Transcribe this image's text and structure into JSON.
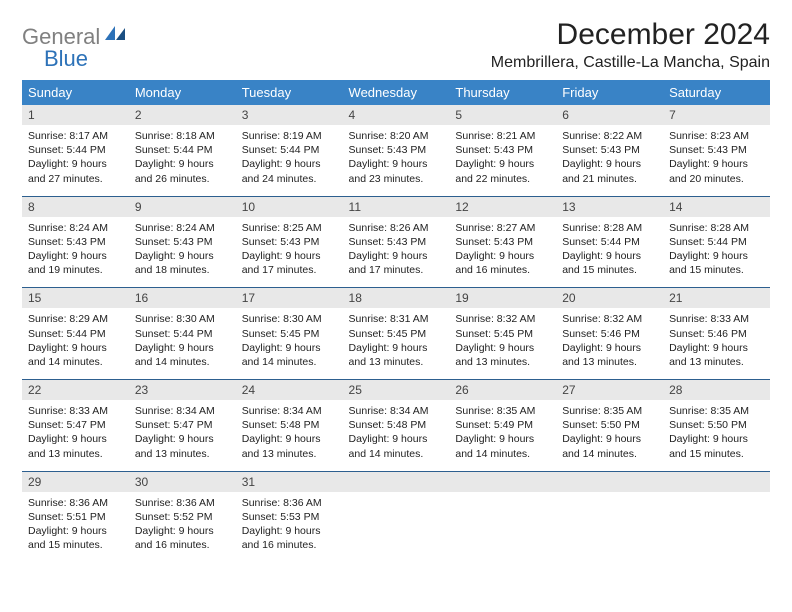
{
  "logo": {
    "gray": "General",
    "blue": "Blue"
  },
  "title": "December 2024",
  "location": "Membrillera, Castille-La Mancha, Spain",
  "colors": {
    "header_bg": "#3983c6",
    "header_text": "#ffffff",
    "daynum_bg": "#e8e8e8",
    "border": "#2d5f8f",
    "logo_gray": "#808080",
    "logo_blue": "#2d72b8"
  },
  "day_headers": [
    "Sunday",
    "Monday",
    "Tuesday",
    "Wednesday",
    "Thursday",
    "Friday",
    "Saturday"
  ],
  "weeks": [
    [
      {
        "n": "1",
        "sr": "Sunrise: 8:17 AM",
        "ss": "Sunset: 5:44 PM",
        "d1": "Daylight: 9 hours",
        "d2": "and 27 minutes."
      },
      {
        "n": "2",
        "sr": "Sunrise: 8:18 AM",
        "ss": "Sunset: 5:44 PM",
        "d1": "Daylight: 9 hours",
        "d2": "and 26 minutes."
      },
      {
        "n": "3",
        "sr": "Sunrise: 8:19 AM",
        "ss": "Sunset: 5:44 PM",
        "d1": "Daylight: 9 hours",
        "d2": "and 24 minutes."
      },
      {
        "n": "4",
        "sr": "Sunrise: 8:20 AM",
        "ss": "Sunset: 5:43 PM",
        "d1": "Daylight: 9 hours",
        "d2": "and 23 minutes."
      },
      {
        "n": "5",
        "sr": "Sunrise: 8:21 AM",
        "ss": "Sunset: 5:43 PM",
        "d1": "Daylight: 9 hours",
        "d2": "and 22 minutes."
      },
      {
        "n": "6",
        "sr": "Sunrise: 8:22 AM",
        "ss": "Sunset: 5:43 PM",
        "d1": "Daylight: 9 hours",
        "d2": "and 21 minutes."
      },
      {
        "n": "7",
        "sr": "Sunrise: 8:23 AM",
        "ss": "Sunset: 5:43 PM",
        "d1": "Daylight: 9 hours",
        "d2": "and 20 minutes."
      }
    ],
    [
      {
        "n": "8",
        "sr": "Sunrise: 8:24 AM",
        "ss": "Sunset: 5:43 PM",
        "d1": "Daylight: 9 hours",
        "d2": "and 19 minutes."
      },
      {
        "n": "9",
        "sr": "Sunrise: 8:24 AM",
        "ss": "Sunset: 5:43 PM",
        "d1": "Daylight: 9 hours",
        "d2": "and 18 minutes."
      },
      {
        "n": "10",
        "sr": "Sunrise: 8:25 AM",
        "ss": "Sunset: 5:43 PM",
        "d1": "Daylight: 9 hours",
        "d2": "and 17 minutes."
      },
      {
        "n": "11",
        "sr": "Sunrise: 8:26 AM",
        "ss": "Sunset: 5:43 PM",
        "d1": "Daylight: 9 hours",
        "d2": "and 17 minutes."
      },
      {
        "n": "12",
        "sr": "Sunrise: 8:27 AM",
        "ss": "Sunset: 5:43 PM",
        "d1": "Daylight: 9 hours",
        "d2": "and 16 minutes."
      },
      {
        "n": "13",
        "sr": "Sunrise: 8:28 AM",
        "ss": "Sunset: 5:44 PM",
        "d1": "Daylight: 9 hours",
        "d2": "and 15 minutes."
      },
      {
        "n": "14",
        "sr": "Sunrise: 8:28 AM",
        "ss": "Sunset: 5:44 PM",
        "d1": "Daylight: 9 hours",
        "d2": "and 15 minutes."
      }
    ],
    [
      {
        "n": "15",
        "sr": "Sunrise: 8:29 AM",
        "ss": "Sunset: 5:44 PM",
        "d1": "Daylight: 9 hours",
        "d2": "and 14 minutes."
      },
      {
        "n": "16",
        "sr": "Sunrise: 8:30 AM",
        "ss": "Sunset: 5:44 PM",
        "d1": "Daylight: 9 hours",
        "d2": "and 14 minutes."
      },
      {
        "n": "17",
        "sr": "Sunrise: 8:30 AM",
        "ss": "Sunset: 5:45 PM",
        "d1": "Daylight: 9 hours",
        "d2": "and 14 minutes."
      },
      {
        "n": "18",
        "sr": "Sunrise: 8:31 AM",
        "ss": "Sunset: 5:45 PM",
        "d1": "Daylight: 9 hours",
        "d2": "and 13 minutes."
      },
      {
        "n": "19",
        "sr": "Sunrise: 8:32 AM",
        "ss": "Sunset: 5:45 PM",
        "d1": "Daylight: 9 hours",
        "d2": "and 13 minutes."
      },
      {
        "n": "20",
        "sr": "Sunrise: 8:32 AM",
        "ss": "Sunset: 5:46 PM",
        "d1": "Daylight: 9 hours",
        "d2": "and 13 minutes."
      },
      {
        "n": "21",
        "sr": "Sunrise: 8:33 AM",
        "ss": "Sunset: 5:46 PM",
        "d1": "Daylight: 9 hours",
        "d2": "and 13 minutes."
      }
    ],
    [
      {
        "n": "22",
        "sr": "Sunrise: 8:33 AM",
        "ss": "Sunset: 5:47 PM",
        "d1": "Daylight: 9 hours",
        "d2": "and 13 minutes."
      },
      {
        "n": "23",
        "sr": "Sunrise: 8:34 AM",
        "ss": "Sunset: 5:47 PM",
        "d1": "Daylight: 9 hours",
        "d2": "and 13 minutes."
      },
      {
        "n": "24",
        "sr": "Sunrise: 8:34 AM",
        "ss": "Sunset: 5:48 PM",
        "d1": "Daylight: 9 hours",
        "d2": "and 13 minutes."
      },
      {
        "n": "25",
        "sr": "Sunrise: 8:34 AM",
        "ss": "Sunset: 5:48 PM",
        "d1": "Daylight: 9 hours",
        "d2": "and 14 minutes."
      },
      {
        "n": "26",
        "sr": "Sunrise: 8:35 AM",
        "ss": "Sunset: 5:49 PM",
        "d1": "Daylight: 9 hours",
        "d2": "and 14 minutes."
      },
      {
        "n": "27",
        "sr": "Sunrise: 8:35 AM",
        "ss": "Sunset: 5:50 PM",
        "d1": "Daylight: 9 hours",
        "d2": "and 14 minutes."
      },
      {
        "n": "28",
        "sr": "Sunrise: 8:35 AM",
        "ss": "Sunset: 5:50 PM",
        "d1": "Daylight: 9 hours",
        "d2": "and 15 minutes."
      }
    ],
    [
      {
        "n": "29",
        "sr": "Sunrise: 8:36 AM",
        "ss": "Sunset: 5:51 PM",
        "d1": "Daylight: 9 hours",
        "d2": "and 15 minutes."
      },
      {
        "n": "30",
        "sr": "Sunrise: 8:36 AM",
        "ss": "Sunset: 5:52 PM",
        "d1": "Daylight: 9 hours",
        "d2": "and 16 minutes."
      },
      {
        "n": "31",
        "sr": "Sunrise: 8:36 AM",
        "ss": "Sunset: 5:53 PM",
        "d1": "Daylight: 9 hours",
        "d2": "and 16 minutes."
      },
      null,
      null,
      null,
      null
    ]
  ]
}
